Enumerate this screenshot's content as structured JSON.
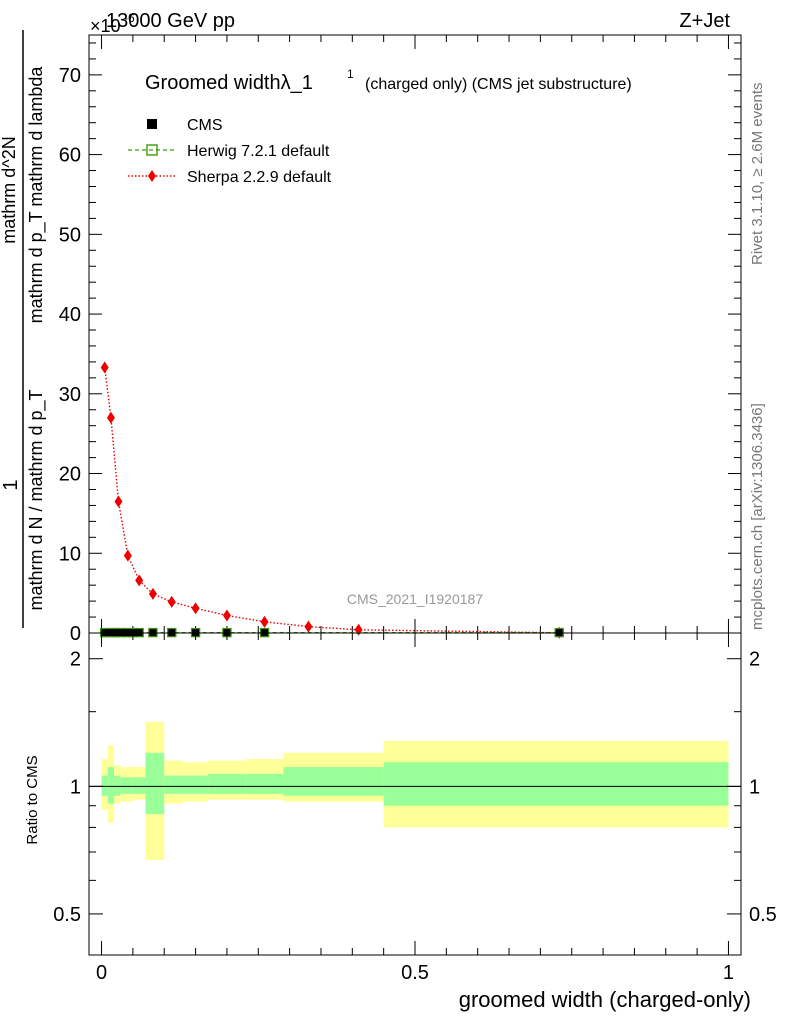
{
  "header": {
    "left_title": "13000 GeV pp",
    "exponent_label": "×10",
    "exponent_power": "-6",
    "right_title": "Z+Jet"
  },
  "side_labels": {
    "rivet": "Rivet 3.1.10, ≥ 2.6M events",
    "mcplots": "mcplots.cern.ch [arXiv:1306.3436]"
  },
  "legend": {
    "title_main": "Groomed widthλ_1",
    "title_sup": "1",
    "title_rest": "(charged only) (CMS jet substructure)",
    "entries": [
      {
        "label": "CMS",
        "color": "#000000",
        "style": "square"
      },
      {
        "label": "Herwig 7.2.1 default",
        "color": "#3a9a0a",
        "style": "open-square-dashed"
      },
      {
        "label": "Sherpa 2.2.9 default",
        "color": "#ee0000",
        "style": "diamond-dotted"
      }
    ]
  },
  "watermark": "CMS_2021_I1920187",
  "chart_data": [
    {
      "type": "scatter",
      "panel": "main",
      "ylabel_numerator": "1",
      "ylabel_denominator": "mathrm d N / mathrm d p_T",
      "ylabel_numerator2": "mathrm d^2N",
      "ylabel_denominator2": "mathrm d p_T mathrm d lambda",
      "xlim": [
        -0.02,
        1.02
      ],
      "ylim": [
        0,
        75
      ],
      "y_ticks": [
        0,
        10,
        20,
        30,
        40,
        50,
        60,
        70
      ],
      "series": [
        {
          "name": "Sherpa 2.2.9 default",
          "color": "#ee0000",
          "x": [
            0.005,
            0.015,
            0.027,
            0.042,
            0.06,
            0.082,
            0.112,
            0.15,
            0.2,
            0.26,
            0.33,
            0.41,
            0.73
          ],
          "y": [
            33.3,
            27.0,
            16.5,
            9.7,
            6.6,
            4.9,
            3.9,
            3.1,
            2.2,
            1.4,
            0.8,
            0.4,
            0.03
          ]
        },
        {
          "name": "Herwig 7.2.1 default",
          "color": "#3a9a0a",
          "x": [
            0.005,
            0.015,
            0.022,
            0.03,
            0.04,
            0.05,
            0.06,
            0.082,
            0.112,
            0.15,
            0.2,
            0.26,
            0.73
          ],
          "y": [
            0.05,
            0.05,
            0.05,
            0.05,
            0.05,
            0.05,
            0.05,
            0.05,
            0.05,
            0.05,
            0.05,
            0.05,
            0.05
          ]
        },
        {
          "name": "CMS",
          "color": "#000000",
          "x": [
            0.005,
            0.015,
            0.022,
            0.03,
            0.04,
            0.05,
            0.06,
            0.082,
            0.112,
            0.15,
            0.2,
            0.26,
            0.73
          ],
          "y": [
            0.05,
            0.05,
            0.05,
            0.05,
            0.05,
            0.05,
            0.05,
            0.05,
            0.05,
            0.05,
            0.05,
            0.05,
            0.05
          ]
        }
      ]
    },
    {
      "type": "area",
      "panel": "ratio",
      "ylabel": "Ratio to CMS",
      "xlabel": "groomed width (charged-only)",
      "xlim": [
        -0.02,
        1.02
      ],
      "ylim": [
        0.4,
        2.3
      ],
      "log_y": true,
      "x_ticks": [
        0,
        0.5,
        1
      ],
      "x_tick_labels": [
        "0",
        "0.5",
        "1"
      ],
      "y_tick_labels": [
        "0.5",
        "1",
        "2"
      ],
      "y_tick_values": [
        0.5,
        1,
        2
      ],
      "bands": {
        "edges": [
          0.0,
          0.01,
          0.02,
          0.03,
          0.05,
          0.07,
          0.1,
          0.13,
          0.17,
          0.23,
          0.29,
          0.37,
          0.45,
          1.0
        ],
        "yellow_lo": [
          0.88,
          0.82,
          0.91,
          0.92,
          0.93,
          0.67,
          0.91,
          0.92,
          0.93,
          0.93,
          0.92,
          0.92,
          0.8
        ],
        "yellow_hi": [
          1.16,
          1.25,
          1.12,
          1.11,
          1.11,
          1.42,
          1.15,
          1.14,
          1.15,
          1.16,
          1.2,
          1.2,
          1.28
        ],
        "green_lo": [
          0.95,
          0.91,
          0.95,
          0.96,
          0.96,
          0.86,
          0.96,
          0.96,
          0.96,
          0.96,
          0.95,
          0.95,
          0.9
        ],
        "green_hi": [
          1.06,
          1.11,
          1.06,
          1.05,
          1.05,
          1.2,
          1.06,
          1.06,
          1.07,
          1.07,
          1.11,
          1.11,
          1.14
        ]
      },
      "reference_line": 1
    }
  ]
}
